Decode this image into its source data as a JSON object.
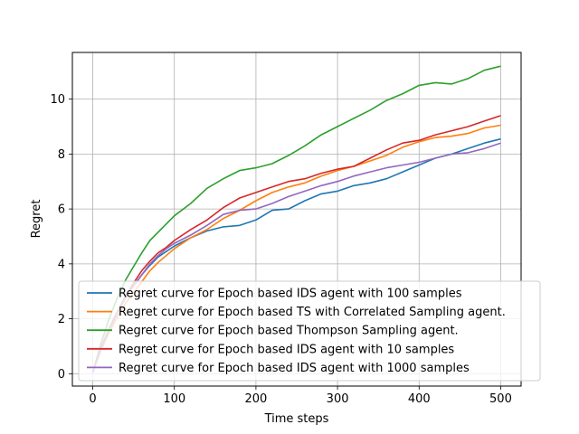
{
  "chart_data": {
    "type": "line",
    "title": "",
    "xlabel": "Time steps",
    "ylabel": "Regret",
    "xlim": [
      -25,
      525
    ],
    "ylim": [
      -0.45,
      11.7
    ],
    "xticks": [
      0,
      100,
      200,
      300,
      400,
      500
    ],
    "yticks": [
      0,
      2,
      4,
      6,
      8,
      10
    ],
    "xtick_labels": [
      "0",
      "100",
      "200",
      "300",
      "400",
      "500"
    ],
    "ytick_labels": [
      "0",
      "2",
      "4",
      "6",
      "8",
      "10"
    ],
    "grid": true,
    "legend_position": "lower-right",
    "x": [
      0,
      10,
      20,
      30,
      40,
      50,
      60,
      70,
      80,
      90,
      100,
      120,
      140,
      160,
      180,
      200,
      220,
      240,
      260,
      280,
      300,
      320,
      340,
      360,
      380,
      400,
      420,
      440,
      460,
      480,
      500
    ],
    "series": [
      {
        "name": "Regret curve for Epoch based IDS agent with 100 samples",
        "color": "#1f77b4",
        "values": [
          0.05,
          0.9,
          1.6,
          2.2,
          2.8,
          3.2,
          3.6,
          3.95,
          4.25,
          4.45,
          4.65,
          4.95,
          5.2,
          5.35,
          5.4,
          5.6,
          5.95,
          6.0,
          6.3,
          6.55,
          6.65,
          6.85,
          6.95,
          7.1,
          7.35,
          7.6,
          7.85,
          8.0,
          8.2,
          8.4,
          8.55
        ]
      },
      {
        "name": "Regret curve for Epoch based TS with Correlated Sampling agent.",
        "color": "#ff7f0e",
        "values": [
          0.05,
          0.85,
          1.5,
          2.05,
          2.55,
          2.95,
          3.35,
          3.75,
          4.05,
          4.3,
          4.55,
          4.95,
          5.25,
          5.65,
          5.95,
          6.3,
          6.6,
          6.8,
          6.95,
          7.2,
          7.4,
          7.55,
          7.75,
          7.95,
          8.25,
          8.45,
          8.6,
          8.65,
          8.75,
          8.95,
          9.05
        ]
      },
      {
        "name": "Regret curve for Epoch based Thompson Sampling agent.",
        "color": "#2ca02c",
        "values": [
          0.05,
          1.1,
          2.0,
          2.75,
          3.4,
          3.9,
          4.4,
          4.85,
          5.15,
          5.45,
          5.75,
          6.2,
          6.75,
          7.1,
          7.4,
          7.5,
          7.65,
          7.95,
          8.3,
          8.7,
          9.0,
          9.3,
          9.6,
          9.95,
          10.2,
          10.5,
          10.6,
          10.55,
          10.75,
          11.05,
          11.2
        ]
      },
      {
        "name": "Regret curve for Epoch based IDS agent with 10 samples",
        "color": "#d62728",
        "values": [
          0.05,
          0.95,
          1.65,
          2.25,
          2.8,
          3.3,
          3.75,
          4.1,
          4.4,
          4.6,
          4.85,
          5.25,
          5.6,
          6.05,
          6.4,
          6.6,
          6.8,
          7.0,
          7.1,
          7.3,
          7.45,
          7.55,
          7.85,
          8.15,
          8.4,
          8.5,
          8.7,
          8.85,
          9.0,
          9.2,
          9.4
        ]
      },
      {
        "name": "Regret curve for Epoch based IDS agent with 1000 samples",
        "color": "#9467bd",
        "values": [
          0.05,
          0.9,
          1.6,
          2.2,
          2.75,
          3.2,
          3.6,
          4.0,
          4.3,
          4.55,
          4.75,
          5.05,
          5.4,
          5.8,
          5.95,
          6.0,
          6.2,
          6.45,
          6.65,
          6.85,
          7.0,
          7.2,
          7.35,
          7.5,
          7.6,
          7.7,
          7.85,
          8.0,
          8.05,
          8.2,
          8.4
        ]
      }
    ]
  }
}
